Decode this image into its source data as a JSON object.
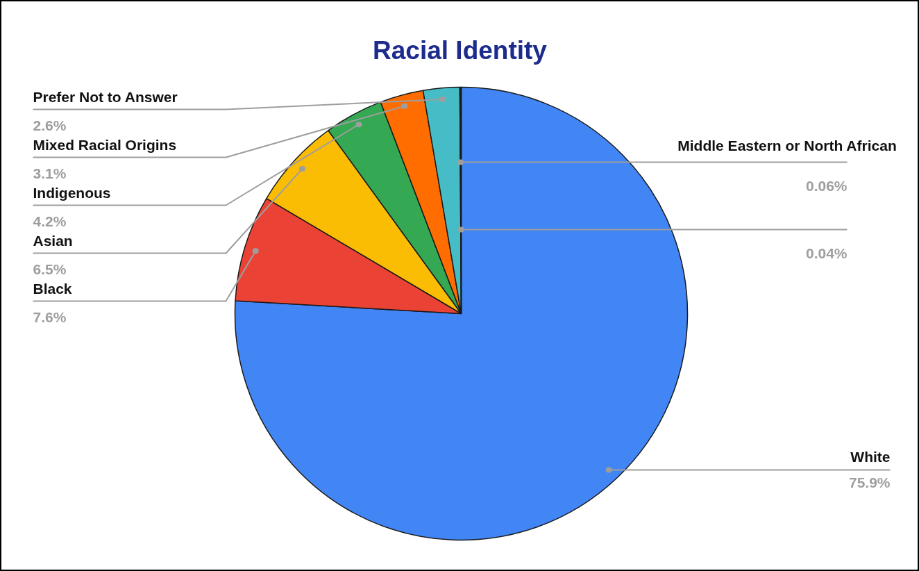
{
  "chart_data": {
    "type": "pie",
    "title": "Racial Identity",
    "categories": [
      "White",
      "Black",
      "Asian",
      "Indigenous",
      "Mixed Racial Origins",
      "Prefer Not to Answer",
      "Middle Eastern or North African",
      null
    ],
    "values": [
      75.9,
      7.6,
      6.5,
      4.2,
      3.1,
      2.6,
      0.06,
      0.04
    ],
    "value_labels": [
      "75.9%",
      "7.6%",
      "6.5%",
      "4.2%",
      "3.1%",
      "2.6%",
      "0.06%",
      "0.04%"
    ],
    "colors": [
      "#4285f4",
      "#ea4335",
      "#fbbc04",
      "#34a853",
      "#ff6d01",
      "#46bdc6",
      "#7baaf7",
      "#f07b72"
    ]
  }
}
